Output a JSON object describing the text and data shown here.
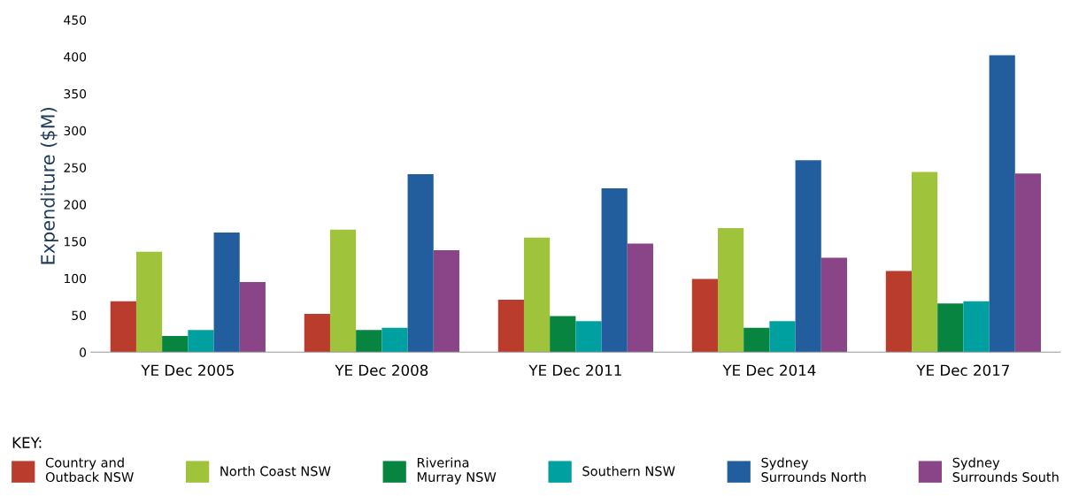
{
  "chart_data": {
    "type": "bar",
    "ylabel": "Expenditure ($M)",
    "legend_title": "KEY:",
    "categories": [
      "YE Dec 2005",
      "YE Dec 2008",
      "YE Dec 2011",
      "YE Dec 2014",
      "YE Dec 2017"
    ],
    "series": [
      {
        "name": "Country and\nOutback NSW",
        "color": "#b93c2c",
        "values": [
          69,
          52,
          71,
          99,
          110
        ]
      },
      {
        "name": "North Coast NSW",
        "color": "#9fc43c",
        "values": [
          136,
          166,
          155,
          168,
          244
        ]
      },
      {
        "name": "Riverina\nMurray NSW",
        "color": "#068440",
        "values": [
          22,
          30,
          49,
          33,
          66
        ]
      },
      {
        "name": "Southern NSW",
        "color": "#00a0a0",
        "values": [
          30,
          33,
          42,
          42,
          69
        ]
      },
      {
        "name": "Sydney\nSurrounds North",
        "color": "#225e9d",
        "values": [
          162,
          241,
          222,
          260,
          402
        ]
      },
      {
        "name": "Sydney\nSurrounds South",
        "color": "#8a4589",
        "values": [
          95,
          138,
          147,
          128,
          242
        ]
      }
    ],
    "ylim": [
      0,
      450
    ],
    "yticks": [
      0,
      50,
      100,
      150,
      200,
      250,
      300,
      350,
      400,
      450
    ],
    "grid": false,
    "legend": "bottom"
  }
}
